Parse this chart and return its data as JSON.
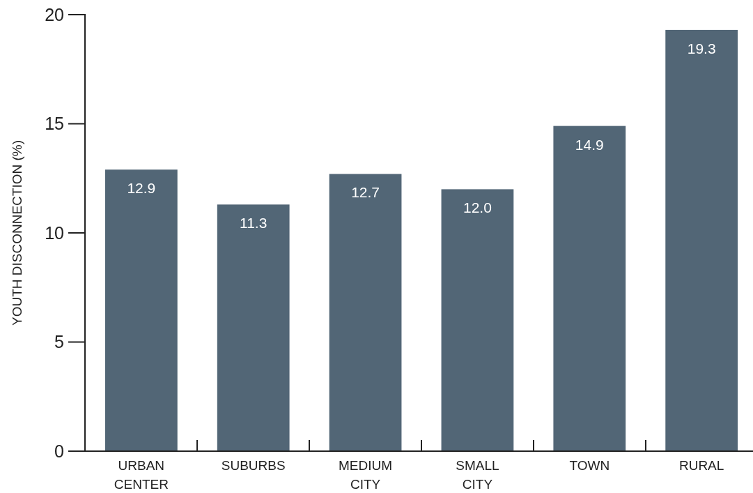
{
  "chart_data": {
    "type": "bar",
    "ylabel": "YOUTH DISCONNECTION (%)",
    "categories": [
      "URBAN CENTER",
      "SUBURBS",
      "MEDIUM CITY",
      "SMALL CITY",
      "TOWN",
      "RURAL"
    ],
    "values": [
      12.9,
      11.3,
      12.7,
      12.0,
      14.9,
      19.3
    ],
    "value_labels": [
      "12.9",
      "11.3",
      "12.7",
      "12.0",
      "14.9",
      "19.3"
    ],
    "color": "#526676",
    "ylim": [
      0,
      20
    ],
    "yticks": [
      0,
      5,
      10,
      15,
      20
    ]
  }
}
